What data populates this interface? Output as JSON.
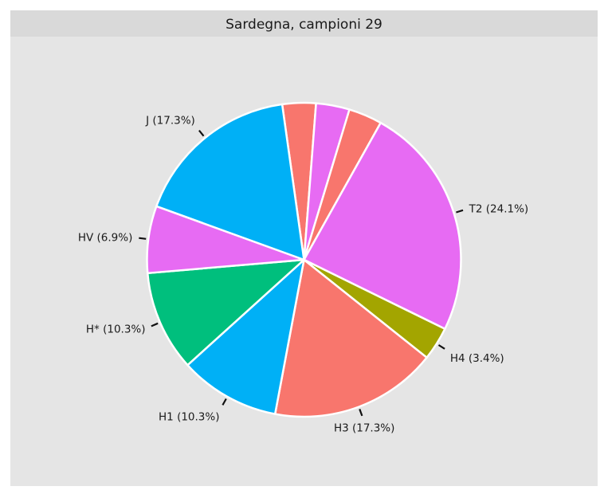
{
  "chart_data": {
    "type": "pie",
    "title": "Sardegna, campioni 29",
    "start_angle_deg": 352,
    "direction": "clockwise",
    "slices": [
      {
        "category": "",
        "count": 1,
        "percent": 3.4,
        "label": "",
        "color": "#F8766D"
      },
      {
        "category": "",
        "count": 1,
        "percent": 3.4,
        "label": "",
        "color": "#E76BF3"
      },
      {
        "category": "",
        "count": 1,
        "percent": 3.4,
        "label": "",
        "color": "#F8766D"
      },
      {
        "category": "T2",
        "count": 7,
        "percent": 24.1,
        "label": "T2 (24.1%)",
        "color": "#E76BF3"
      },
      {
        "category": "H4",
        "count": 1,
        "percent": 3.4,
        "label": "H4 (3.4%)",
        "color": "#A3A500"
      },
      {
        "category": "H3",
        "count": 5,
        "percent": 17.3,
        "label": "H3 (17.3%)",
        "color": "#F8766D"
      },
      {
        "category": "H1",
        "count": 3,
        "percent": 10.3,
        "label": "H1 (10.3%)",
        "color": "#00B0F6"
      },
      {
        "category": "H*",
        "count": 3,
        "percent": 10.3,
        "label": "H* (10.3%)",
        "color": "#00BF7D"
      },
      {
        "category": "HV",
        "count": 2,
        "percent": 6.9,
        "label": "HV (6.9%)",
        "color": "#E76BF3"
      },
      {
        "category": "J",
        "count": 5,
        "percent": 17.3,
        "label": "J (17.3%)",
        "color": "#00B0F6"
      }
    ],
    "panel_background": "#E5E5E5",
    "strip_background": "#D9D9D9",
    "slice_border_color": "#FFFFFF",
    "legend": "none",
    "grid": false
  }
}
